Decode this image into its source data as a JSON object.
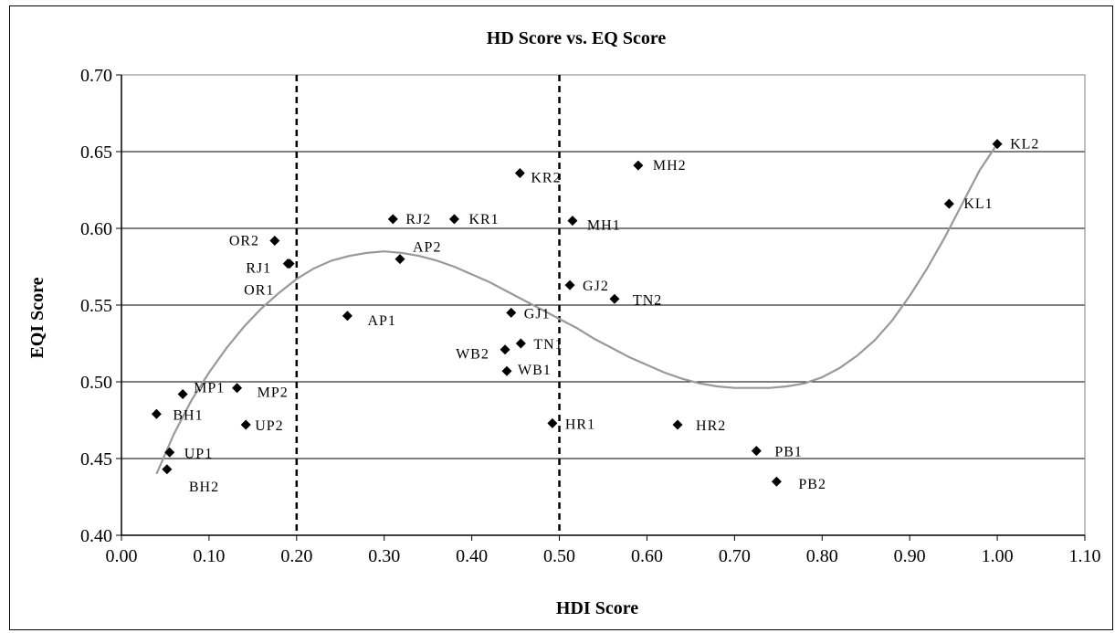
{
  "chart_data": {
    "type": "scatter",
    "title": "HD Score vs. EQ Score",
    "xlabel": "HDI Score",
    "ylabel": "EQI Score",
    "xlim": [
      0.0,
      1.1
    ],
    "ylim": [
      0.4,
      0.7
    ],
    "x_ticks": [
      "0.00",
      "0.10",
      "0.20",
      "0.30",
      "0.40",
      "0.50",
      "0.60",
      "0.70",
      "0.80",
      "0.90",
      "1.00",
      "1.10"
    ],
    "y_ticks": [
      "0.40",
      "0.45",
      "0.50",
      "0.55",
      "0.60",
      "0.65",
      "0.70"
    ],
    "grid": "horizontal",
    "reference_lines_x": [
      0.2,
      0.5
    ],
    "marker_color": "#000000",
    "trend_color": "#999999",
    "points": [
      {
        "label": "KL2",
        "x": 1.0,
        "y": 0.655
      },
      {
        "label": "KL1",
        "x": 0.945,
        "y": 0.616
      },
      {
        "label": "MH2",
        "x": 0.59,
        "y": 0.641
      },
      {
        "label": "KR2",
        "x": 0.455,
        "y": 0.636
      },
      {
        "label": "MH1",
        "x": 0.515,
        "y": 0.605
      },
      {
        "label": "RJ2",
        "x": 0.31,
        "y": 0.606
      },
      {
        "label": "KR1",
        "x": 0.38,
        "y": 0.606
      },
      {
        "label": "OR2",
        "x": 0.175,
        "y": 0.592
      },
      {
        "label": "RJ1",
        "x": 0.19,
        "y": 0.577
      },
      {
        "label": "OR1",
        "x": 0.192,
        "y": 0.577
      },
      {
        "label": "AP2",
        "x": 0.318,
        "y": 0.58
      },
      {
        "label": "GJ2",
        "x": 0.512,
        "y": 0.563
      },
      {
        "label": "TN2",
        "x": 0.563,
        "y": 0.554
      },
      {
        "label": "AP1",
        "x": 0.258,
        "y": 0.543
      },
      {
        "label": "GJ1",
        "x": 0.445,
        "y": 0.545
      },
      {
        "label": "WB2",
        "x": 0.438,
        "y": 0.521
      },
      {
        "label": "TN1",
        "x": 0.456,
        "y": 0.525
      },
      {
        "label": "WB1",
        "x": 0.44,
        "y": 0.507
      },
      {
        "label": "MP1",
        "x": 0.07,
        "y": 0.492
      },
      {
        "label": "MP2",
        "x": 0.132,
        "y": 0.496
      },
      {
        "label": "BH1",
        "x": 0.04,
        "y": 0.479
      },
      {
        "label": "UP2",
        "x": 0.142,
        "y": 0.472
      },
      {
        "label": "UP1",
        "x": 0.055,
        "y": 0.454
      },
      {
        "label": "BH2",
        "x": 0.052,
        "y": 0.443
      },
      {
        "label": "HR1",
        "x": 0.492,
        "y": 0.473
      },
      {
        "label": "HR2",
        "x": 0.635,
        "y": 0.472
      },
      {
        "label": "PB1",
        "x": 0.725,
        "y": 0.455
      },
      {
        "label": "PB2",
        "x": 0.748,
        "y": 0.435
      }
    ],
    "trendline": {
      "type": "polynomial",
      "x": [
        0.04,
        0.06,
        0.08,
        0.1,
        0.12,
        0.14,
        0.16,
        0.18,
        0.2,
        0.22,
        0.24,
        0.26,
        0.28,
        0.3,
        0.32,
        0.34,
        0.36,
        0.38,
        0.4,
        0.42,
        0.44,
        0.46,
        0.48,
        0.5,
        0.52,
        0.54,
        0.56,
        0.58,
        0.6,
        0.62,
        0.64,
        0.66,
        0.68,
        0.7,
        0.72,
        0.74,
        0.76,
        0.78,
        0.8,
        0.82,
        0.84,
        0.86,
        0.88,
        0.9,
        0.92,
        0.94,
        0.96,
        0.98,
        1.0
      ],
      "y": [
        0.44,
        0.466,
        0.488,
        0.506,
        0.522,
        0.536,
        0.548,
        0.558,
        0.567,
        0.574,
        0.579,
        0.582,
        0.584,
        0.585,
        0.584,
        0.582,
        0.579,
        0.575,
        0.57,
        0.565,
        0.559,
        0.553,
        0.547,
        0.541,
        0.535,
        0.528,
        0.522,
        0.516,
        0.511,
        0.506,
        0.502,
        0.499,
        0.497,
        0.496,
        0.496,
        0.496,
        0.497,
        0.499,
        0.503,
        0.509,
        0.517,
        0.527,
        0.54,
        0.556,
        0.574,
        0.594,
        0.616,
        0.638,
        0.655
      ]
    }
  }
}
